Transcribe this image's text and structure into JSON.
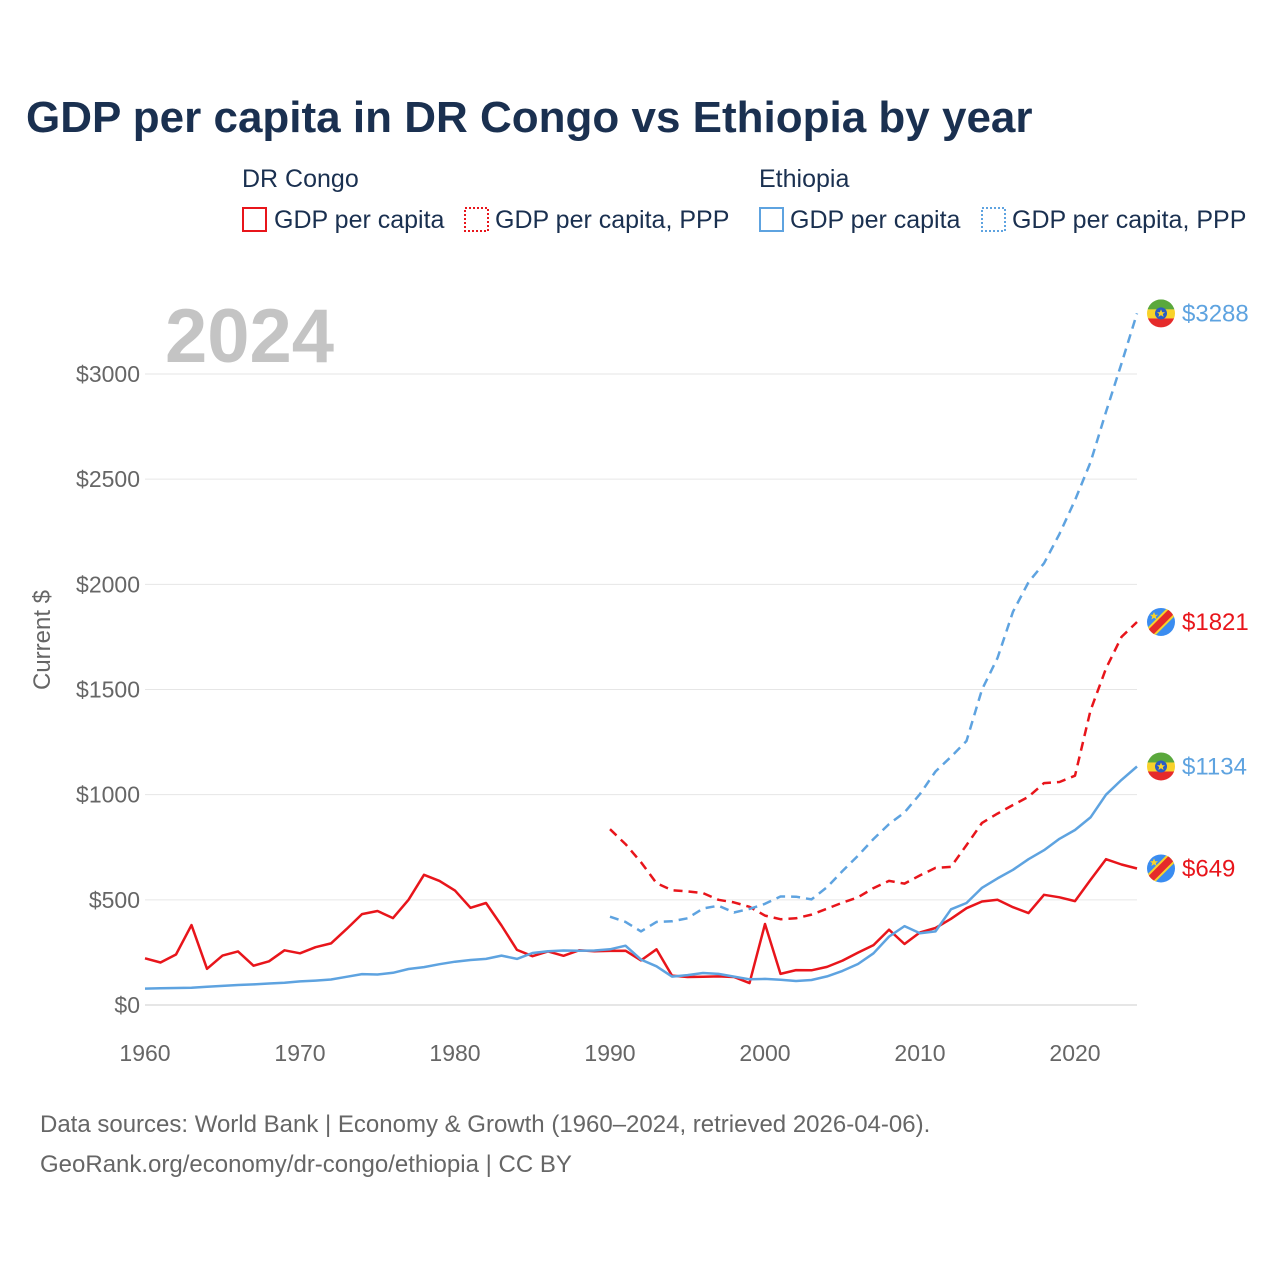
{
  "chart_data": {
    "type": "line",
    "title": "GDP per capita in DR Congo vs Ethiopia by year",
    "ylabel": "Current $",
    "xlabel": "",
    "year_label": "2024",
    "xlim": [
      1960,
      2024
    ],
    "ylim": [
      0,
      3300
    ],
    "x_ticks": [
      1960,
      1970,
      1980,
      1990,
      2000,
      2010,
      2020
    ],
    "y_ticks": [
      {
        "value": 0,
        "label": "$0"
      },
      {
        "value": 500,
        "label": "$500"
      },
      {
        "value": 1000,
        "label": "$1000"
      },
      {
        "value": 1500,
        "label": "$1500"
      },
      {
        "value": 2000,
        "label": "$2000"
      },
      {
        "value": 2500,
        "label": "$2500"
      },
      {
        "value": 3000,
        "label": "$3000"
      }
    ],
    "grid": true,
    "legend": {
      "groups": [
        {
          "country": "DR Congo",
          "color": "#e8151b",
          "items": [
            "GDP per capita",
            "GDP per capita, PPP"
          ]
        },
        {
          "country": "Ethiopia",
          "color": "#5ea3e0",
          "items": [
            "GDP per capita",
            "GDP per capita, PPP"
          ]
        }
      ]
    },
    "series": [
      {
        "name": "DR Congo GDP per capita",
        "country": "DR Congo",
        "color": "#e8151b",
        "dash": "solid",
        "start_year": 1960,
        "values": [
          222,
          202,
          240,
          380,
          172,
          235,
          255,
          187,
          208,
          260,
          246,
          275,
          293,
          361,
          432,
          447,
          413,
          500,
          619,
          590,
          544,
          462,
          485,
          378,
          262,
          232,
          255,
          234,
          260,
          256,
          257,
          258,
          212,
          265,
          140,
          133,
          134,
          136,
          133,
          104,
          385,
          148,
          166,
          165,
          181,
          211,
          249,
          285,
          358,
          290,
          345,
          366,
          410,
          460,
          492,
          500,
          465,
          437,
          524,
          512,
          494,
          595,
          693,
          668,
          649
        ],
        "end_label": "$649"
      },
      {
        "name": "DR Congo GDP per capita, PPP",
        "country": "DR Congo",
        "color": "#e8151b",
        "dash": "dashed",
        "start_year": 1990,
        "values": [
          836,
          765,
          679,
          579,
          546,
          540,
          532,
          500,
          488,
          467,
          425,
          408,
          412,
          430,
          458,
          487,
          512,
          556,
          590,
          577,
          616,
          652,
          657,
          760,
          866,
          910,
          951,
          990,
          1055,
          1060,
          1090,
          1400,
          1600,
          1750,
          1821
        ],
        "end_label": "$1821"
      },
      {
        "name": "Ethiopia GDP per capita",
        "country": "Ethiopia",
        "color": "#5ea3e0",
        "dash": "solid",
        "start_year": 1960,
        "values": [
          78,
          80,
          81,
          82,
          87,
          91,
          95,
          98,
          102,
          106,
          112,
          116,
          121,
          134,
          147,
          145,
          153,
          171,
          180,
          194,
          206,
          214,
          219,
          235,
          219,
          247,
          256,
          259,
          258,
          259,
          265,
          282,
          216,
          184,
          135,
          142,
          152,
          148,
          135,
          122,
          124,
          120,
          114,
          119,
          136,
          162,
          195,
          246,
          325,
          375,
          341,
          350,
          455,
          485,
          557,
          602,
          643,
          693,
          736,
          790,
          832,
          892,
          1000,
          1070,
          1134
        ],
        "end_label": "$1134"
      },
      {
        "name": "Ethiopia GDP per capita, PPP",
        "country": "Ethiopia",
        "color": "#5ea3e0",
        "dash": "dashed",
        "start_year": 1990,
        "values": [
          420,
          395,
          350,
          395,
          398,
          412,
          459,
          472,
          440,
          457,
          481,
          516,
          515,
          502,
          560,
          637,
          710,
          789,
          860,
          915,
          1003,
          1110,
          1180,
          1255,
          1500,
          1650,
          1870,
          2010,
          2100,
          2240,
          2400,
          2580,
          2820,
          3050,
          3288
        ],
        "end_label": "$3288"
      }
    ]
  },
  "footer": {
    "line1": "Data sources: World Bank | Economy & Growth (1960–2024, retrieved 2026-04-06).",
    "line2": "GeoRank.org/economy/dr-congo/ethiopia | CC BY"
  }
}
